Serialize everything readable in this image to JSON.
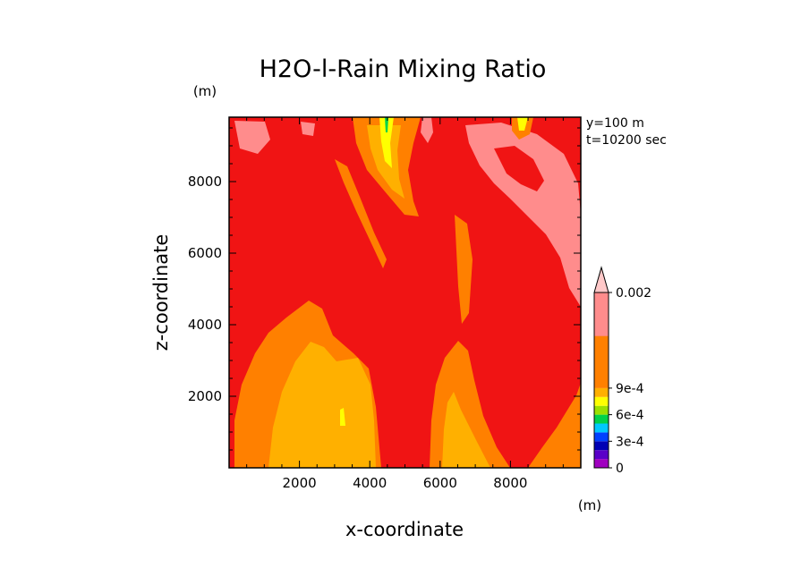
{
  "chart_data": {
    "type": "heatmap",
    "title": "H2O-l-Rain Mixing Ratio",
    "xlabel": "x-coordinate",
    "ylabel": "z-coordinate",
    "x_unit": "(m)",
    "y_unit": "(m)",
    "annotations": [
      "y=100 m",
      "t=10200 sec"
    ],
    "xlim": [
      0,
      10000
    ],
    "ylim": [
      0,
      9800
    ],
    "x_ticks": [
      2000,
      4000,
      6000,
      8000
    ],
    "y_ticks": [
      2000,
      4000,
      6000,
      8000
    ],
    "x_tick_labels": [
      "2000",
      "4000",
      "6000",
      "8000"
    ],
    "y_tick_labels": [
      "2000",
      "4000",
      "6000",
      "8000"
    ],
    "colorbar": {
      "labels": [
        "0",
        "3e-4",
        "6e-4",
        "9e-4",
        "0.002"
      ],
      "label_values": [
        0,
        0.0003,
        0.0006,
        0.0009,
        0.002
      ],
      "levels": [
        0,
        0.0001,
        0.0002,
        0.0003,
        0.0004,
        0.0005,
        0.0006,
        0.0007,
        0.0008,
        0.0009,
        0.0015,
        0.002
      ],
      "colors": [
        "#a000c0",
        "#5a00c8",
        "#0000b4",
        "#0040ff",
        "#00c8ff",
        "#00d24a",
        "#9be000",
        "#ffff00",
        "#ffb000",
        "#ff8000",
        "#f01414",
        "#ff8c8c"
      ]
    },
    "background_color": "#f01414"
  }
}
